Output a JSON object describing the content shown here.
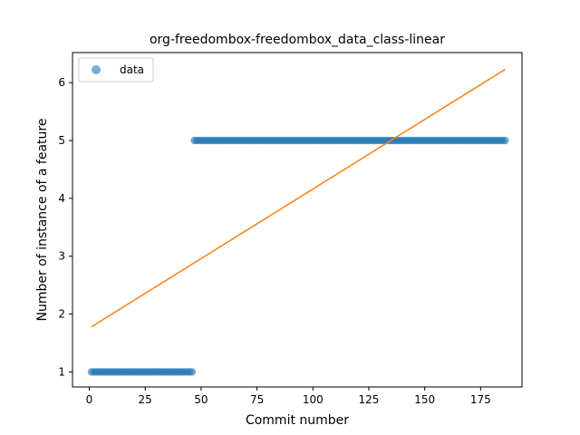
{
  "chart_data": {
    "type": "scatter",
    "title": "org-freedombox-freedombox_data_class-linear",
    "xlabel": "Commit number",
    "ylabel": "Number of instance of a feature",
    "xlim": [
      -7.5,
      193.5
    ],
    "ylim": [
      0.74,
      6.52
    ],
    "xticks": [
      0,
      25,
      50,
      75,
      100,
      125,
      150,
      175
    ],
    "yticks": [
      1,
      2,
      3,
      4,
      5,
      6
    ],
    "grid": false,
    "legend": {
      "position": "top-left",
      "entries": [
        "data"
      ]
    },
    "series": [
      {
        "name": "data",
        "kind": "scatter",
        "color": "#1f77b4",
        "segments": [
          {
            "x_start": 1,
            "x_end": 46,
            "y": 1
          },
          {
            "x_start": 47,
            "x_end": 186,
            "y": 5
          }
        ]
      },
      {
        "kind": "line",
        "color": "#ff7f0e",
        "x": [
          1,
          186
        ],
        "y": [
          1.78,
          6.23
        ]
      }
    ]
  }
}
